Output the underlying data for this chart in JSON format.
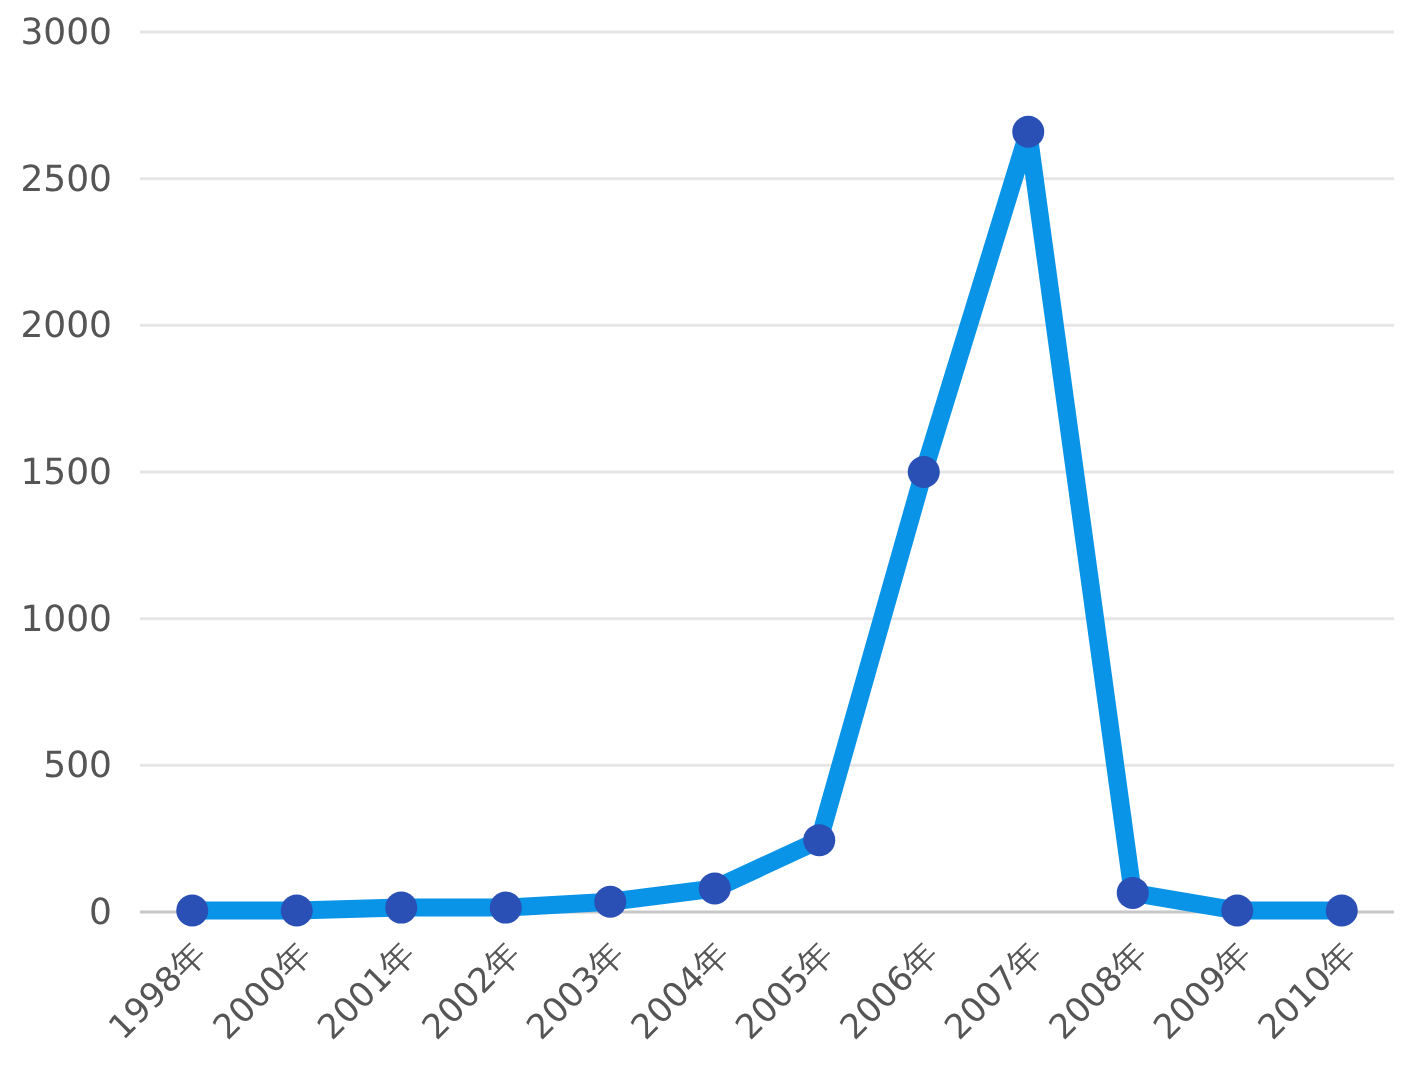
{
  "chart_data": {
    "type": "line",
    "categories": [
      "1998年",
      "2000年",
      "2001年",
      "2002年",
      "2003年",
      "2004年",
      "2005年",
      "2006年",
      "2007年",
      "2008年",
      "2009年",
      "2010年"
    ],
    "series": [
      {
        "color": "#0a94e8",
        "values": [
          5,
          5,
          15,
          15,
          35,
          80,
          245,
          1500,
          2660,
          65,
          5,
          5
        ]
      }
    ],
    "ylim": [
      0,
      3000
    ],
    "yticks": [
      0,
      500,
      1000,
      1500,
      2000,
      2500,
      3000
    ],
    "grid": "y",
    "marker": "circle",
    "line_style": "solid"
  }
}
